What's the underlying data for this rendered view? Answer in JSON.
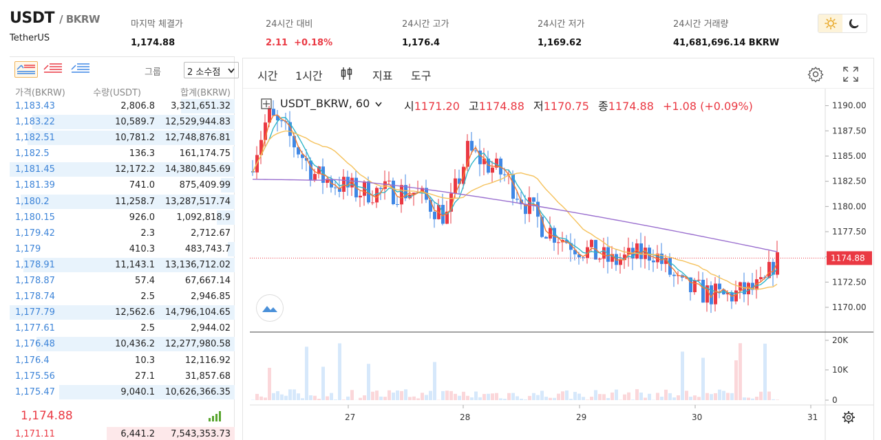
{
  "header": {
    "base": "USDT",
    "quote": "/ BKRW",
    "name": "TetherUS",
    "stats": [
      {
        "label": "마지막 체결가",
        "value": "1,174.88",
        "color": "#111111"
      },
      {
        "label": "24시간 대비",
        "value": "2.11  +0.18%",
        "color": "#ea3943"
      },
      {
        "label": "24시간 고가",
        "value": "1,176.4",
        "color": "#111111"
      },
      {
        "label": "24시간 저가",
        "value": "1,169.62",
        "color": "#111111"
      },
      {
        "label": "24시간 거래량",
        "value": "41,681,696.14 BKRW",
        "color": "#111111"
      }
    ],
    "theme_icons": [
      "sun-icon",
      "moon-icon"
    ]
  },
  "orderbook": {
    "group_label": "그룹",
    "decimals": "2 소수점",
    "columns": [
      "가격(BKRW)",
      "수량(USDT)",
      "합계(BKRW)"
    ],
    "asks": [
      {
        "price": "1,183.43",
        "qty": "2,806.8",
        "total": "3,321,651.32",
        "depth": 0.24
      },
      {
        "price": "1,183.22",
        "qty": "10,589.7",
        "total": "12,529,944.83",
        "depth": 0.9
      },
      {
        "price": "1,182.51",
        "qty": "10,781.2",
        "total": "12,748,876.81",
        "depth": 0.92
      },
      {
        "price": "1,182.5",
        "qty": "136.3",
        "total": "161,174.75",
        "depth": 0.01
      },
      {
        "price": "1,181.45",
        "qty": "12,172.2",
        "total": "14,380,845.69",
        "depth": 1.0
      },
      {
        "price": "1,181.39",
        "qty": "741.0",
        "total": "875,409.99",
        "depth": 0.06
      },
      {
        "price": "1,180.2",
        "qty": "11,258.7",
        "total": "13,287,517.74",
        "depth": 0.95
      },
      {
        "price": "1,180.15",
        "qty": "926.0",
        "total": "1,092,818.9",
        "depth": 0.08
      },
      {
        "price": "1,179.42",
        "qty": "2.3",
        "total": "2,712.67",
        "depth": 0.0
      },
      {
        "price": "1,179",
        "qty": "410.3",
        "total": "483,743.7",
        "depth": 0.03
      },
      {
        "price": "1,178.91",
        "qty": "11,143.1",
        "total": "13,136,712.02",
        "depth": 0.94
      },
      {
        "price": "1,178.87",
        "qty": "57.4",
        "total": "67,667.14",
        "depth": 0.0
      },
      {
        "price": "1,178.74",
        "qty": "2.5",
        "total": "2,946.85",
        "depth": 0.0
      },
      {
        "price": "1,177.79",
        "qty": "12,562.6",
        "total": "14,796,104.65",
        "depth": 1.0
      },
      {
        "price": "1,177.61",
        "qty": "2.5",
        "total": "2,944.02",
        "depth": 0.0
      },
      {
        "price": "1,176.48",
        "qty": "10,436.2",
        "total": "12,277,980.58",
        "depth": 0.88
      },
      {
        "price": "1,176.4",
        "qty": "10.3",
        "total": "12,116.92",
        "depth": 0.0
      },
      {
        "price": "1,175.56",
        "qty": "27.1",
        "total": "31,857.68",
        "depth": 0.0
      },
      {
        "price": "1,175.47",
        "qty": "9,040.1",
        "total": "10,626,366.35",
        "depth": 0.78
      }
    ],
    "last_price": "1,174.88",
    "bid": {
      "price": "1,171.11",
      "qty": "6,441.2",
      "total": "7,543,353.73"
    }
  },
  "chart_toolbar": {
    "items": [
      "시간",
      "1시간",
      "지표",
      "도구"
    ]
  },
  "chart_legend": {
    "symbol": "USDT_BKRW, 60",
    "open_label": "시",
    "open": "1171.20",
    "high_label": "고",
    "high": "1174.88",
    "low_label": "저",
    "low": "1170.75",
    "close_label": "종",
    "close": "1174.88",
    "change": "+1.08 (+0.09%)"
  },
  "chart_data": {
    "type": "candlestick",
    "price_axis": {
      "ticks": [
        "1190.00",
        "1187.50",
        "1185.00",
        "1182.50",
        "1180.00",
        "1177.50",
        "1175.00",
        "1172.50",
        "1170.00"
      ],
      "min": 1168.5,
      "max": 1191.0
    },
    "volume_axis": {
      "ticks": [
        "20K",
        "10K",
        "0"
      ]
    },
    "x_ticks": [
      "27",
      "28",
      "29",
      "30",
      "31"
    ],
    "last_price_label": "1174.88",
    "colors": {
      "up": "#ea3943",
      "down": "#3f87e5",
      "ma_fast": "#2fb5c8",
      "ma_mid": "#f47b30",
      "ma_slow": "#f5c15a",
      "ma_long": "#9a6fcf"
    }
  }
}
